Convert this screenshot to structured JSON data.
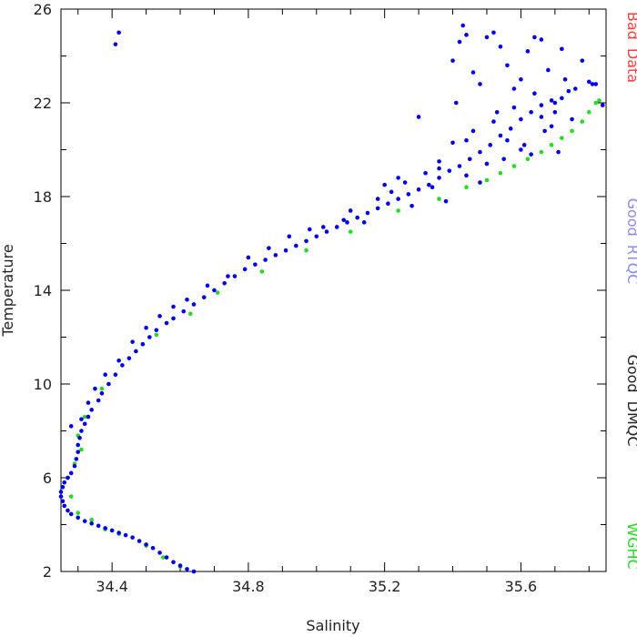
{
  "chart_data": {
    "type": "scatter",
    "title": "",
    "xlabel": "Salinity",
    "ylabel": "Temperature",
    "xlim": [
      34.25,
      35.85
    ],
    "ylim": [
      2,
      26
    ],
    "x_ticks": [
      34.4,
      34.8,
      35.2,
      35.6
    ],
    "x_tick_labels": [
      "34.4",
      "34.8",
      "35.2",
      "35.6"
    ],
    "y_ticks": [
      2,
      6,
      10,
      14,
      18,
      22,
      26
    ],
    "y_tick_labels": [
      "2",
      "6",
      "10",
      "14",
      "18",
      "22",
      "26"
    ],
    "grid": false,
    "legend_position": "right (vertical labels)",
    "legend": [
      {
        "name": "Bad Data",
        "color": "#ff3b3b"
      },
      {
        "name": "Good RTQC",
        "color": "#8a8af5"
      },
      {
        "name": "Good DMQC",
        "color": "#222222"
      },
      {
        "name": "WGHC",
        "color": "#22dd22"
      }
    ],
    "series": [
      {
        "name": "Good RTQC",
        "color": "#0000ee",
        "points": [
          [
            34.64,
            2.0
          ],
          [
            34.62,
            2.1
          ],
          [
            34.6,
            2.25
          ],
          [
            34.58,
            2.4
          ],
          [
            34.56,
            2.6
          ],
          [
            34.54,
            2.8
          ],
          [
            34.52,
            3.0
          ],
          [
            34.5,
            3.15
          ],
          [
            34.48,
            3.3
          ],
          [
            34.46,
            3.45
          ],
          [
            34.44,
            3.55
          ],
          [
            34.42,
            3.65
          ],
          [
            34.4,
            3.75
          ],
          [
            34.38,
            3.85
          ],
          [
            34.36,
            3.95
          ],
          [
            34.34,
            4.05
          ],
          [
            34.32,
            4.15
          ],
          [
            34.3,
            4.3
          ],
          [
            34.28,
            4.45
          ],
          [
            34.27,
            4.6
          ],
          [
            34.26,
            4.8
          ],
          [
            34.255,
            5.0
          ],
          [
            34.25,
            5.2
          ],
          [
            34.25,
            5.4
          ],
          [
            34.255,
            5.6
          ],
          [
            34.26,
            5.8
          ],
          [
            34.27,
            6.0
          ],
          [
            34.28,
            6.2
          ],
          [
            34.29,
            6.5
          ],
          [
            34.295,
            6.8
          ],
          [
            34.3,
            7.1
          ],
          [
            34.3,
            7.4
          ],
          [
            34.305,
            7.7
          ],
          [
            34.31,
            8.0
          ],
          [
            34.32,
            8.3
          ],
          [
            34.33,
            8.6
          ],
          [
            34.34,
            8.9
          ],
          [
            34.36,
            9.3
          ],
          [
            34.37,
            9.6
          ],
          [
            34.39,
            10.0
          ],
          [
            34.41,
            10.4
          ],
          [
            34.43,
            10.8
          ],
          [
            34.45,
            11.1
          ],
          [
            34.47,
            11.4
          ],
          [
            34.49,
            11.7
          ],
          [
            34.51,
            12.0
          ],
          [
            34.53,
            12.3
          ],
          [
            34.56,
            12.6
          ],
          [
            34.58,
            12.8
          ],
          [
            34.61,
            13.1
          ],
          [
            34.64,
            13.4
          ],
          [
            34.67,
            13.7
          ],
          [
            34.7,
            14.0
          ],
          [
            34.73,
            14.3
          ],
          [
            34.76,
            14.6
          ],
          [
            34.79,
            14.9
          ],
          [
            34.82,
            15.1
          ],
          [
            34.85,
            15.3
          ],
          [
            34.88,
            15.5
          ],
          [
            34.91,
            15.7
          ],
          [
            34.94,
            15.9
          ],
          [
            34.97,
            16.1
          ],
          [
            35.0,
            16.3
          ],
          [
            35.03,
            16.5
          ],
          [
            35.06,
            16.7
          ],
          [
            35.09,
            16.9
          ],
          [
            35.12,
            17.1
          ],
          [
            35.15,
            17.3
          ],
          [
            35.18,
            17.5
          ],
          [
            35.21,
            17.7
          ],
          [
            35.24,
            17.9
          ],
          [
            35.27,
            18.1
          ],
          [
            35.3,
            18.3
          ],
          [
            35.33,
            18.5
          ],
          [
            35.36,
            18.8
          ],
          [
            35.39,
            19.1
          ],
          [
            35.42,
            19.3
          ],
          [
            35.45,
            19.6
          ],
          [
            35.48,
            19.9
          ],
          [
            35.51,
            20.2
          ],
          [
            35.54,
            20.6
          ],
          [
            35.57,
            20.9
          ],
          [
            35.6,
            21.3
          ],
          [
            35.63,
            21.6
          ],
          [
            35.66,
            21.9
          ],
          [
            35.69,
            22.1
          ],
          [
            35.72,
            22.2
          ],
          [
            35.38,
            17.8
          ],
          [
            35.36,
            19.2
          ],
          [
            35.34,
            18.4
          ],
          [
            35.32,
            19.0
          ],
          [
            35.28,
            17.6
          ],
          [
            35.26,
            18.6
          ],
          [
            35.22,
            18.2
          ],
          [
            35.18,
            17.9
          ],
          [
            35.14,
            16.9
          ],
          [
            35.1,
            17.4
          ],
          [
            35.4,
            20.3
          ],
          [
            35.44,
            18.9
          ],
          [
            35.46,
            20.8
          ],
          [
            35.48,
            18.6
          ],
          [
            35.5,
            19.4
          ],
          [
            35.52,
            21.2
          ],
          [
            35.55,
            19.6
          ],
          [
            35.58,
            21.8
          ],
          [
            35.61,
            20.2
          ],
          [
            35.64,
            22.4
          ],
          [
            35.67,
            20.8
          ],
          [
            35.7,
            21.6
          ],
          [
            35.73,
            23.0
          ],
          [
            35.76,
            22.6
          ],
          [
            35.8,
            22.9
          ],
          [
            35.82,
            22.8
          ],
          [
            35.41,
            22.0
          ],
          [
            35.3,
            21.4
          ],
          [
            35.44,
            20.4
          ],
          [
            35.36,
            19.5
          ],
          [
            35.24,
            18.8
          ],
          [
            35.2,
            18.5
          ],
          [
            35.08,
            17.0
          ],
          [
            35.02,
            16.7
          ],
          [
            34.98,
            16.6
          ],
          [
            34.92,
            16.3
          ],
          [
            34.86,
            15.8
          ],
          [
            34.8,
            15.4
          ],
          [
            34.74,
            14.6
          ],
          [
            34.68,
            14.2
          ],
          [
            34.62,
            13.6
          ],
          [
            34.58,
            13.3
          ],
          [
            34.54,
            12.9
          ],
          [
            34.5,
            12.4
          ],
          [
            34.46,
            11.8
          ],
          [
            34.42,
            11.0
          ],
          [
            34.38,
            10.4
          ],
          [
            34.35,
            9.8
          ],
          [
            34.33,
            9.2
          ],
          [
            34.31,
            8.5
          ],
          [
            34.28,
            8.2
          ],
          [
            34.41,
            24.5
          ],
          [
            34.42,
            25.0
          ],
          [
            35.4,
            23.8
          ],
          [
            35.42,
            24.6
          ],
          [
            35.43,
            25.3
          ],
          [
            35.44,
            24.9
          ],
          [
            35.46,
            23.3
          ],
          [
            35.48,
            22.8
          ],
          [
            35.5,
            24.8
          ],
          [
            35.52,
            25.0
          ],
          [
            35.54,
            24.4
          ],
          [
            35.56,
            23.6
          ],
          [
            35.58,
            22.6
          ],
          [
            35.6,
            23.0
          ],
          [
            35.62,
            24.2
          ],
          [
            35.64,
            24.8
          ],
          [
            35.66,
            24.7
          ],
          [
            35.68,
            23.4
          ],
          [
            35.7,
            22.0
          ],
          [
            35.72,
            24.3
          ],
          [
            35.74,
            22.5
          ],
          [
            35.78,
            23.8
          ],
          [
            35.81,
            22.8
          ],
          [
            35.84,
            21.9
          ],
          [
            35.6,
            20.0
          ],
          [
            35.56,
            20.4
          ],
          [
            35.53,
            21.6
          ],
          [
            35.63,
            19.8
          ],
          [
            35.66,
            21.4
          ],
          [
            35.69,
            21.0
          ],
          [
            35.71,
            19.9
          ],
          [
            35.75,
            21.3
          ]
        ]
      },
      {
        "name": "WGHC",
        "color": "#22dd22",
        "points": [
          [
            34.64,
            2.0
          ],
          [
            34.6,
            2.2
          ],
          [
            34.55,
            2.6
          ],
          [
            34.5,
            3.1
          ],
          [
            34.42,
            3.6
          ],
          [
            34.38,
            3.8
          ],
          [
            34.34,
            4.2
          ],
          [
            34.3,
            4.5
          ],
          [
            34.28,
            5.2
          ],
          [
            34.27,
            6.0
          ],
          [
            34.29,
            6.6
          ],
          [
            34.31,
            7.2
          ],
          [
            34.3,
            7.8
          ],
          [
            34.32,
            8.6
          ],
          [
            34.37,
            9.8
          ],
          [
            34.53,
            12.1
          ],
          [
            34.63,
            13.0
          ],
          [
            34.71,
            13.9
          ],
          [
            34.84,
            14.8
          ],
          [
            34.97,
            15.7
          ],
          [
            35.1,
            16.5
          ],
          [
            35.24,
            17.4
          ],
          [
            35.36,
            17.9
          ],
          [
            35.44,
            18.4
          ],
          [
            35.5,
            18.7
          ],
          [
            35.54,
            19.0
          ],
          [
            35.58,
            19.3
          ],
          [
            35.62,
            19.6
          ],
          [
            35.66,
            19.9
          ],
          [
            35.69,
            20.2
          ],
          [
            35.72,
            20.5
          ],
          [
            35.75,
            20.8
          ],
          [
            35.78,
            21.2
          ],
          [
            35.8,
            21.6
          ],
          [
            35.82,
            22.0
          ],
          [
            35.83,
            22.1
          ]
        ]
      }
    ]
  }
}
